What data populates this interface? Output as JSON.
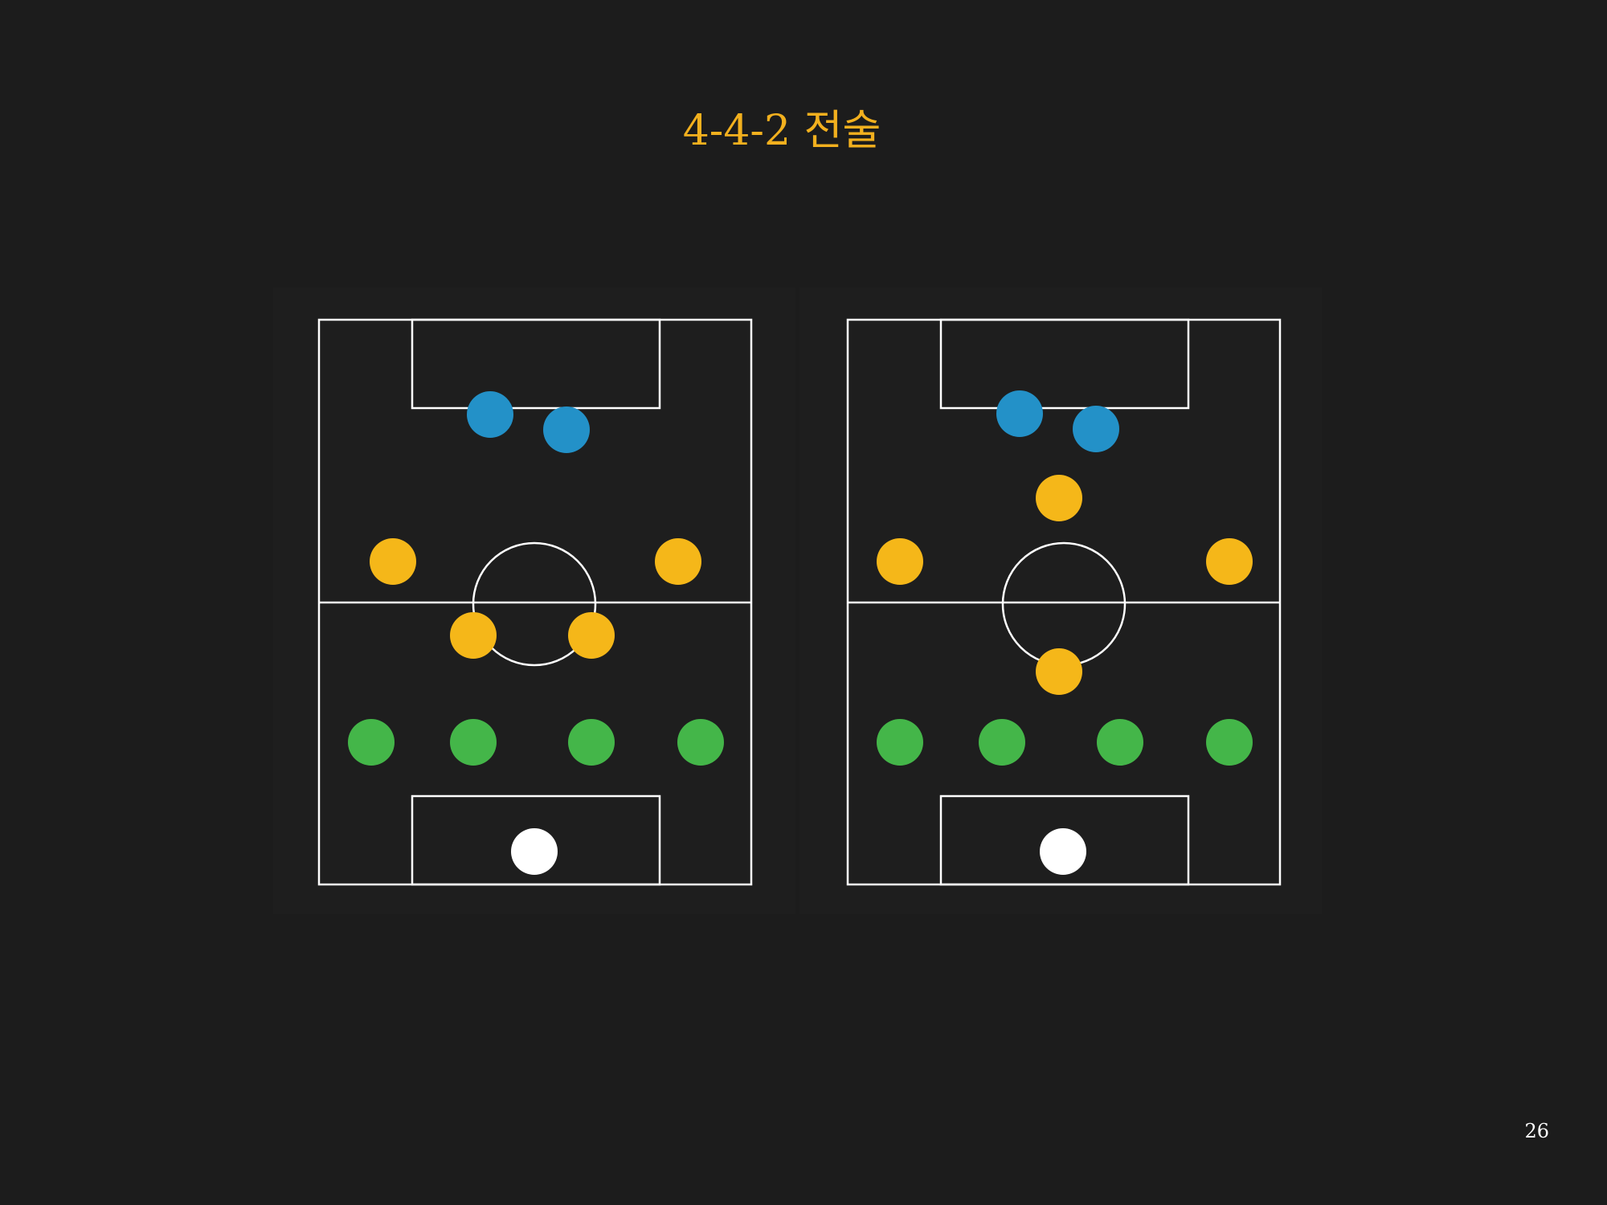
{
  "slide": {
    "title": "4-4-2 전술",
    "page_number": "26"
  },
  "colors": {
    "background": "#1c1c1c",
    "panel": "#1e1e1e",
    "pitch_lines": "#ffffff",
    "title": "#f2b01e",
    "forward": "#2391c8",
    "midfielder": "#f5b719",
    "defender": "#44b649",
    "goalkeeper": "#ffffff"
  },
  "formations": [
    {
      "id": "flat",
      "players": [
        {
          "role": "forward"
        },
        {
          "role": "forward"
        },
        {
          "role": "midfielder"
        },
        {
          "role": "midfielder"
        },
        {
          "role": "midfielder"
        },
        {
          "role": "midfielder"
        },
        {
          "role": "defender"
        },
        {
          "role": "defender"
        },
        {
          "role": "defender"
        },
        {
          "role": "defender"
        },
        {
          "role": "goalkeeper"
        }
      ]
    },
    {
      "id": "diamond",
      "players": [
        {
          "role": "forward"
        },
        {
          "role": "forward"
        },
        {
          "role": "midfielder"
        },
        {
          "role": "midfielder"
        },
        {
          "role": "midfielder"
        },
        {
          "role": "midfielder"
        },
        {
          "role": "defender"
        },
        {
          "role": "defender"
        },
        {
          "role": "defender"
        },
        {
          "role": "defender"
        },
        {
          "role": "goalkeeper"
        }
      ]
    }
  ]
}
